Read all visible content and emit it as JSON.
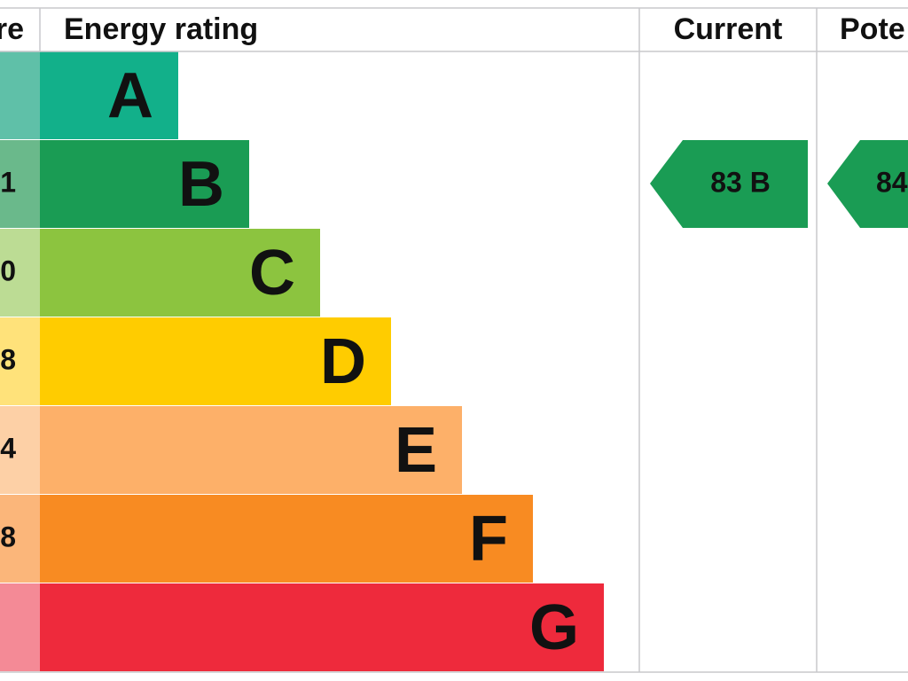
{
  "header": {
    "score": "re",
    "energy_rating": "Energy rating",
    "current": "Current",
    "potential": "Pote"
  },
  "rows": [
    {
      "band": "A"
    },
    {
      "band": "B",
      "score": "1"
    },
    {
      "band": "C",
      "score": "0"
    },
    {
      "band": "D",
      "score": "8"
    },
    {
      "band": "E",
      "score": "4"
    },
    {
      "band": "F",
      "score": "8"
    },
    {
      "band": "G"
    }
  ],
  "current": "83 B",
  "potential": "84"
}
